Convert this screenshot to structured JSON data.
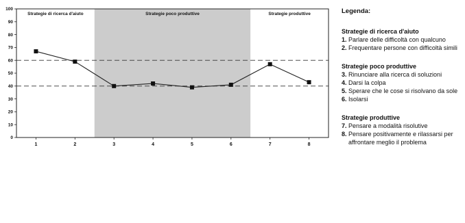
{
  "chart_data": {
    "type": "line",
    "title": "",
    "xlabel": "",
    "ylabel": "",
    "x": [
      1,
      2,
      3,
      4,
      5,
      6,
      7,
      8
    ],
    "series": [
      {
        "values": [
          67,
          59,
          40,
          42,
          39,
          41,
          57,
          43
        ]
      }
    ],
    "ylim": [
      0,
      100
    ],
    "yticks": [
      "0",
      "10",
      "20",
      "30",
      "40",
      "50",
      "60",
      "70",
      "80",
      "90",
      "100"
    ],
    "xticks": [
      "1",
      "2",
      "3",
      "4",
      "5",
      "6",
      "7",
      "8"
    ],
    "reference_lines": [
      40,
      60
    ],
    "regions": [
      {
        "label": "Strategie di ricerca d'aiuto",
        "from": 0.5,
        "to": 2.5,
        "color": "#ffffff"
      },
      {
        "label": "Strategie poco produttive",
        "from": 2.5,
        "to": 6.5,
        "color": "#cccccc"
      },
      {
        "label": "Strategie produttive",
        "from": 6.5,
        "to": 8.5,
        "color": "#ffffff"
      }
    ],
    "grid": false,
    "line_color": "#222222",
    "marker": "square"
  },
  "legend": {
    "title": "Legenda:",
    "groups": [
      {
        "title": "Strategie di ricerca d'aiuto",
        "items": [
          {
            "num": "1.",
            "text": "Parlare delle difficoltà con qualcuno"
          },
          {
            "num": "2.",
            "text": "Frequentare persone con difficoltà simili"
          }
        ]
      },
      {
        "title": "Strategie poco produttive",
        "items": [
          {
            "num": "3.",
            "text": "Rinunciare alla ricerca di soluzioni"
          },
          {
            "num": "4.",
            "text": "Darsi la colpa"
          },
          {
            "num": "5.",
            "text": "Sperare che le cose si risolvano da sole"
          },
          {
            "num": "6.",
            "text": "Isolarsi"
          }
        ]
      },
      {
        "title": "Strategie produttive",
        "items": [
          {
            "num": "7.",
            "text": "Pensare a modalità risolutive"
          },
          {
            "num": "8.",
            "text": "Pensare positivamente e rilassarsi per affrontare meglio il problema"
          }
        ]
      }
    ]
  }
}
